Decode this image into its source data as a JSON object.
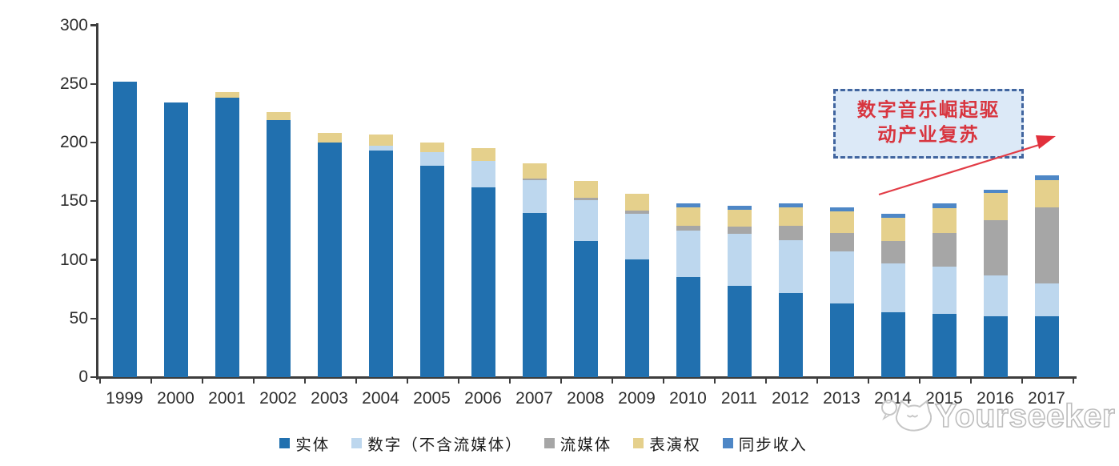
{
  "watermark": {
    "brand": "Yourseeker"
  },
  "annotation": {
    "lines": [
      "数字音乐崛起驱",
      "动产业复苏"
    ],
    "text_color": "#d8353f",
    "box_fill": "#dce9f7",
    "box_border_color": "#41659f",
    "arrow_color": "#e23c46"
  },
  "chart_data": {
    "type": "bar",
    "stacked": true,
    "title": "",
    "xlabel": "",
    "ylabel": "",
    "ylim": [
      0,
      300
    ],
    "y_ticks": [
      0,
      50,
      100,
      150,
      200,
      250,
      300
    ],
    "grid": false,
    "legend_position": "bottom",
    "categories": [
      "1999",
      "2000",
      "2001",
      "2002",
      "2003",
      "2004",
      "2005",
      "2006",
      "2007",
      "2008",
      "2009",
      "2010",
      "2011",
      "2012",
      "2013",
      "2014",
      "2015",
      "2016",
      "2017"
    ],
    "series": [
      {
        "name": "实体",
        "key": "physical",
        "color": "#2170af",
        "values": [
          252,
          234,
          238,
          219,
          200,
          193,
          180,
          162,
          140,
          116,
          100,
          85,
          78,
          72,
          63,
          55,
          54,
          52,
          52
        ]
      },
      {
        "name": "数字（不含流媒体）",
        "key": "digital-excl-streaming",
        "color": "#bdd7ee",
        "values": [
          0,
          0,
          0,
          0,
          0,
          4,
          12,
          22,
          28,
          35,
          39,
          40,
          44,
          45,
          44,
          42,
          40,
          35,
          28
        ]
      },
      {
        "name": "流媒体",
        "key": "streaming",
        "color": "#a6a6a6",
        "values": [
          0,
          0,
          0,
          0,
          0,
          0,
          0,
          0,
          1,
          2,
          3,
          4,
          6,
          12,
          16,
          19,
          29,
          47,
          65
        ]
      },
      {
        "name": "表演权",
        "key": "performance-rights",
        "color": "#e5d08c",
        "values": [
          0,
          0,
          5,
          7,
          8,
          10,
          8,
          11,
          13,
          14,
          14,
          16,
          15,
          16,
          18,
          20,
          21,
          23,
          23
        ]
      },
      {
        "name": "同步收入",
        "key": "sync-revenue",
        "color": "#4e87c6",
        "values": [
          0,
          0,
          0,
          0,
          0,
          0,
          0,
          0,
          0,
          0,
          0,
          3,
          3,
          3,
          4,
          3,
          4,
          3,
          4
        ]
      }
    ]
  }
}
